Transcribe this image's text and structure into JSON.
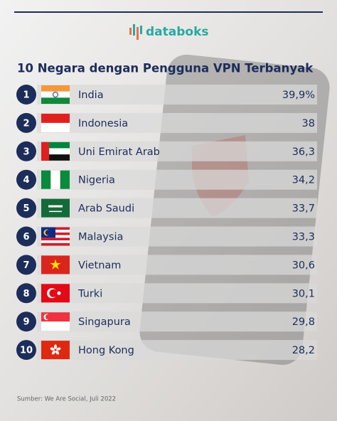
{
  "header": {
    "brand": "databoks",
    "title": "10 Negara dengan Pengguna VPN Terbanyak"
  },
  "rows": [
    {
      "rank": "1",
      "country": "India",
      "value": "39,9%"
    },
    {
      "rank": "2",
      "country": "Indonesia",
      "value": "38"
    },
    {
      "rank": "3",
      "country": "Uni Emirat Arab",
      "value": "36,3"
    },
    {
      "rank": "4",
      "country": "Nigeria",
      "value": "34,2"
    },
    {
      "rank": "5",
      "country": "Arab Saudi",
      "value": "33,7"
    },
    {
      "rank": "6",
      "country": "Malaysia",
      "value": "33,3"
    },
    {
      "rank": "7",
      "country": "Vietnam",
      "value": "30,6"
    },
    {
      "rank": "8",
      "country": "Turki",
      "value": "30,1"
    },
    {
      "rank": "9",
      "country": "Singapura",
      "value": "29,8"
    },
    {
      "rank": "10",
      "country": "Hong Kong",
      "value": "28,2"
    }
  ],
  "footer": {
    "source": "Sumber: We Are Social, Juli 2022"
  }
}
